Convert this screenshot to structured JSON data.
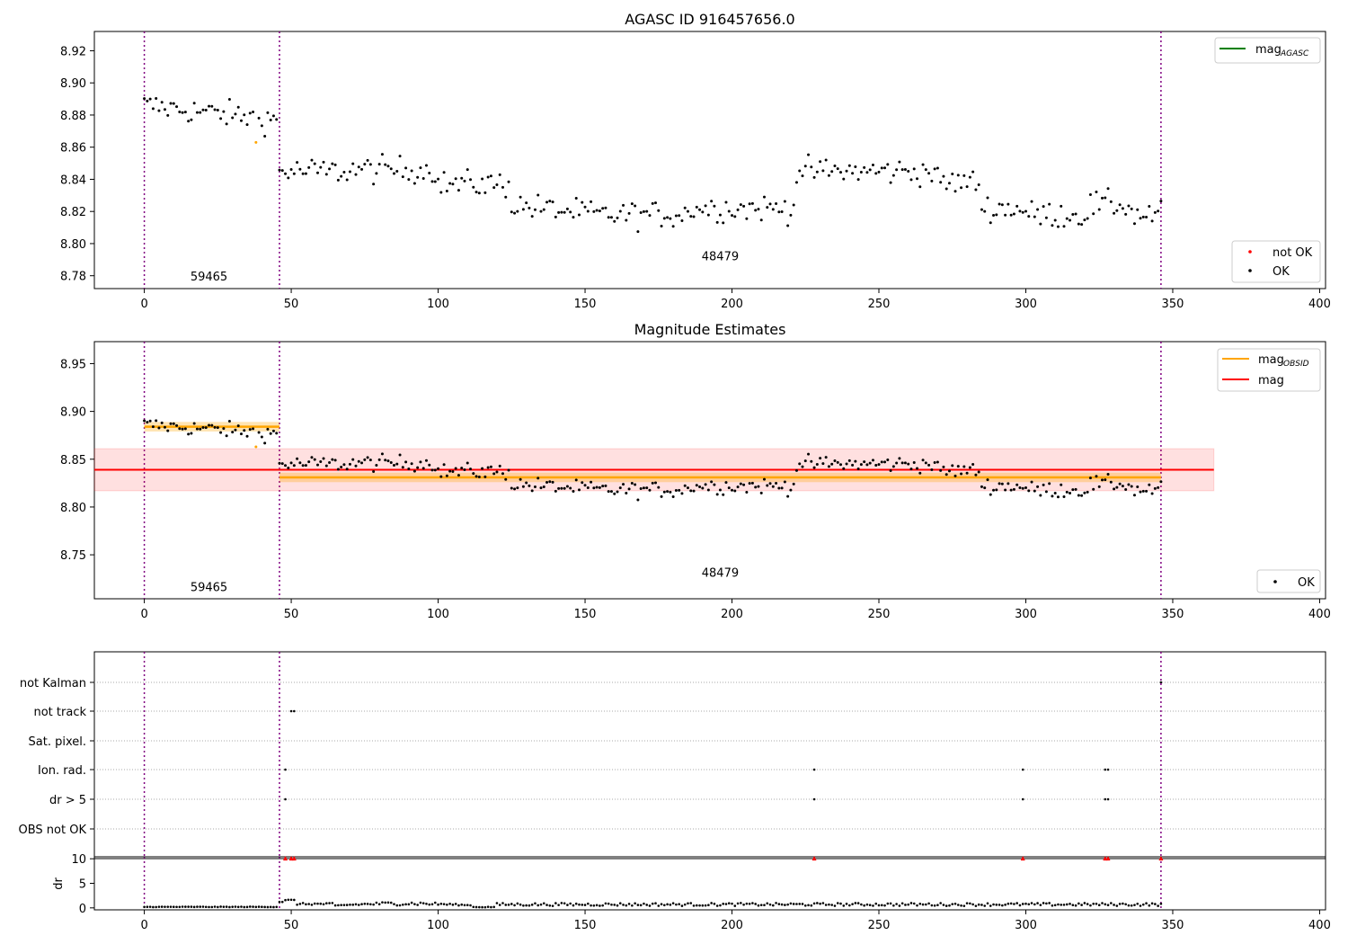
{
  "figure": {
    "title": "AGASC ID 916457656.0",
    "obsid_labels": [
      {
        "text": "59465",
        "x": 22,
        "y": 8.777
      },
      {
        "text": "48479",
        "x": 196,
        "y": 8.7895
      }
    ]
  },
  "chart_data": [
    {
      "type": "scatter",
      "title": "",
      "xlim": [
        -17,
        402
      ],
      "ylim": [
        8.772,
        8.932
      ],
      "x_ticks": [
        0,
        50,
        100,
        150,
        200,
        250,
        300,
        350,
        400
      ],
      "y_ticks": [
        8.78,
        8.8,
        8.82,
        8.84,
        8.86,
        8.88,
        8.9,
        8.92
      ],
      "obsid_boundaries": [
        0,
        46,
        346
      ],
      "legend_upper_right": [
        {
          "label": "mag",
          "subscript": "AGASC",
          "color": "#008000"
        }
      ],
      "legend_lower_right": [
        {
          "label": "not OK",
          "color": "#ff0000"
        },
        {
          "label": "OK",
          "color": "#000000"
        }
      ],
      "series_ok_color": "#000000",
      "flagged_points": [
        {
          "x": 38,
          "y": 8.863,
          "color": "#ffa500"
        }
      ]
    },
    {
      "type": "scatter",
      "title": "Magnitude Estimates",
      "xlim": [
        -17,
        402
      ],
      "ylim": [
        8.704,
        8.973
      ],
      "x_ticks": [
        0,
        50,
        100,
        150,
        200,
        250,
        300,
        350,
        400
      ],
      "y_ticks": [
        8.75,
        8.8,
        8.85,
        8.9,
        8.95
      ],
      "obsid_boundaries": [
        0,
        46,
        346
      ],
      "mag": {
        "value": 8.839,
        "band": [
          8.817,
          8.861
        ],
        "x_range": [
          -17,
          364
        ],
        "color": "#ff0000"
      },
      "mag_obsid": [
        {
          "x_range": [
            0,
            46
          ],
          "value": 8.884,
          "band": [
            8.879,
            8.889
          ]
        },
        {
          "x_range": [
            46,
            346
          ],
          "value": 8.831,
          "band": [
            8.826,
            8.836
          ]
        }
      ],
      "mag_obsid_color": "#ffa500",
      "legend_upper_right": [
        {
          "label": "mag",
          "subscript": "OBSID",
          "color": "#ffa500"
        },
        {
          "label": "mag",
          "subscript": "",
          "color": "#ff0000"
        }
      ],
      "legend_lower_right": [
        {
          "label": "OK",
          "color": "#000000"
        }
      ],
      "flagged_points": [
        {
          "x": 38,
          "y": 8.863,
          "color": "#ffa500"
        }
      ]
    },
    {
      "type": "scatter",
      "title": "",
      "xlim": [
        -17,
        402
      ],
      "x_ticks": [
        0,
        50,
        100,
        150,
        200,
        250,
        300,
        350,
        400
      ],
      "obsid_boundaries": [
        0,
        46,
        346
      ],
      "flag_categories": [
        "not Kalman",
        "not track",
        "Sat. pixel.",
        "Ion. rad.",
        "dr > 5",
        "OBS not OK"
      ],
      "flags": {
        "not Kalman": [
          346
        ],
        "not track": [
          50,
          51
        ],
        "Sat. pixel.": [],
        "Ion. rad.": [
          48,
          228,
          299,
          327,
          328
        ],
        "dr > 5": [
          48,
          228,
          299,
          327,
          328
        ],
        "OBS not OK": []
      }
    },
    {
      "type": "scatter",
      "title": "",
      "xlim": [
        -17,
        402
      ],
      "ylim": [
        -0.4,
        10.4
      ],
      "x_ticks": [
        0,
        50,
        100,
        150,
        200,
        250,
        300,
        350,
        400
      ],
      "y_ticks": [
        0,
        5,
        10
      ],
      "ylabel": "dr",
      "obsid_boundaries": [
        0,
        46,
        346
      ],
      "clipped_points": [
        48,
        50,
        51,
        228,
        299,
        327,
        328,
        346
      ],
      "clipped_color": "#ff0000"
    }
  ]
}
